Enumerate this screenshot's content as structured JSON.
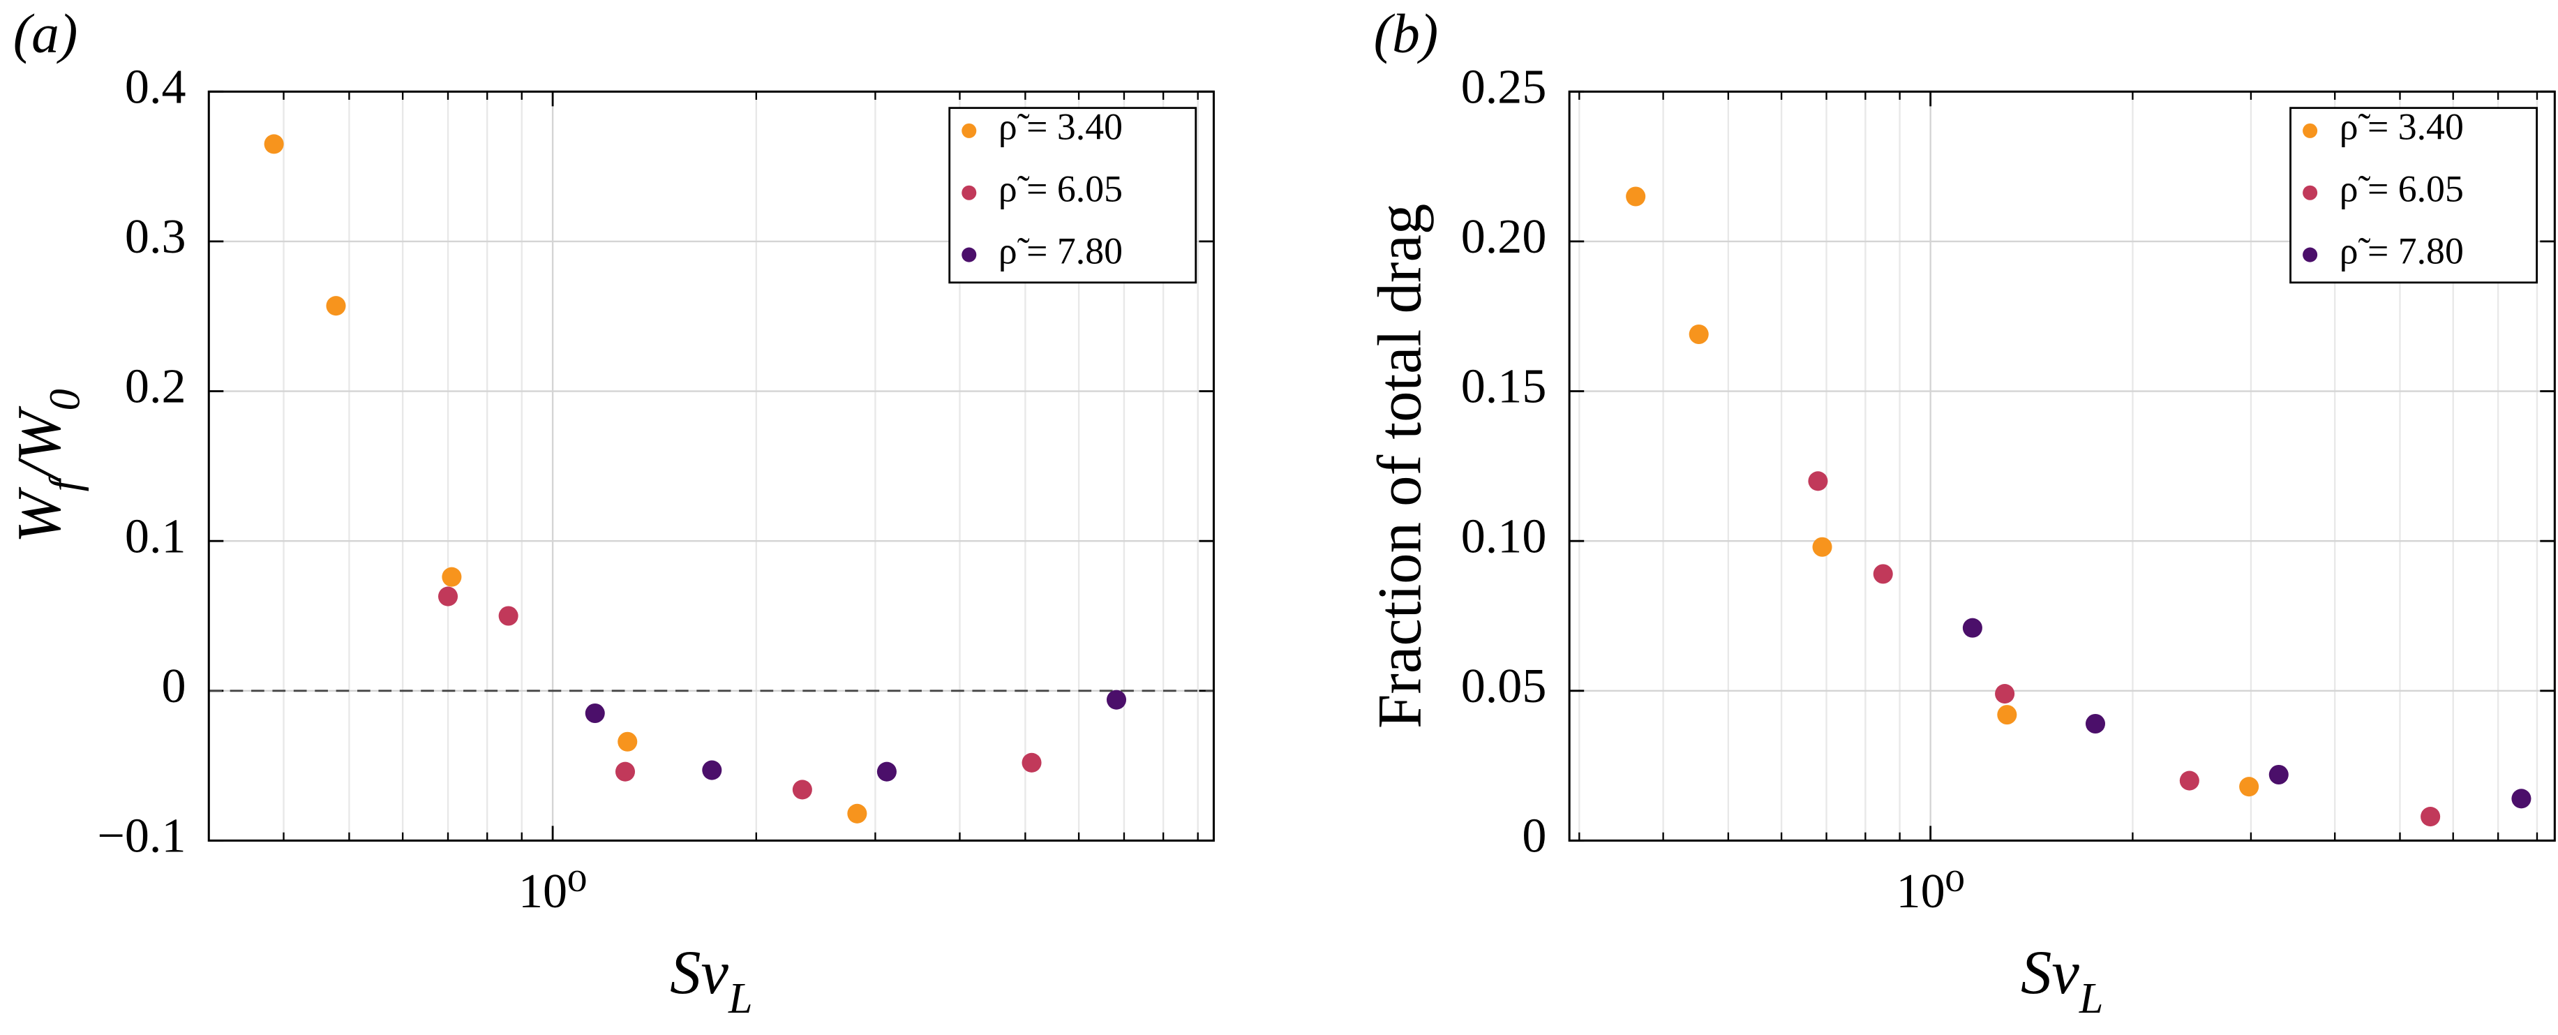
{
  "chart_data": [
    {
      "type": "scatter",
      "panel_label": "(a)",
      "xlabel": [
        {
          "text": "Sv"
        },
        {
          "text": "L",
          "sub": true
        }
      ],
      "ylabel": [
        {
          "text": "W"
        },
        {
          "text": "f",
          "sub": true
        },
        {
          "text": "/W"
        },
        {
          "text": "0",
          "sub": true
        }
      ],
      "xscale": "log",
      "xlim": [
        0.31,
        9.5
      ],
      "ylim": [
        -0.1,
        0.4
      ],
      "xticks": [
        {
          "value": 1,
          "label": "10⁰"
        }
      ],
      "xminor_ticks": [
        0.4,
        0.5,
        0.6,
        0.7,
        0.8,
        0.9,
        2,
        3,
        4,
        5,
        6,
        7,
        8,
        9
      ],
      "yticks": [
        {
          "value": -0.1,
          "label": "−0.1"
        },
        0,
        0.1,
        0.2,
        0.3,
        0.4
      ],
      "hline": 0,
      "grid": true,
      "legend": "upper right",
      "series": [
        {
          "name": "ρ̃ = 3.40",
          "color": "#f7941d",
          "x": [
            0.387,
            0.478,
            0.709,
            1.29,
            2.82
          ],
          "values": [
            0.365,
            0.257,
            0.076,
            -0.034,
            -0.082
          ]
        },
        {
          "name": "ρ̃ = 6.05",
          "color": "#c1395a",
          "x": [
            0.7,
            0.86,
            1.28,
            2.34,
            5.11
          ],
          "values": [
            0.063,
            0.05,
            -0.054,
            -0.066,
            -0.048
          ]
        },
        {
          "name": "ρ̃ = 7.80",
          "color": "#4b0f6a",
          "x": [
            1.155,
            1.72,
            3.12,
            6.82
          ],
          "values": [
            -0.015,
            -0.053,
            -0.054,
            -0.006
          ]
        }
      ]
    },
    {
      "type": "scatter",
      "panel_label": "(b)",
      "xlabel": [
        {
          "text": "Sv"
        },
        {
          "text": "L",
          "sub": true
        }
      ],
      "ylabel": [
        {
          "text": "Fraction of total drag"
        }
      ],
      "xscale": "log",
      "xlim": [
        0.29,
        8.5
      ],
      "ylim": [
        0,
        0.25
      ],
      "xticks": [
        {
          "value": 1,
          "label": "10⁰"
        }
      ],
      "xminor_ticks": [
        0.3,
        0.4,
        0.5,
        0.6,
        0.7,
        0.8,
        0.9,
        2,
        3,
        4,
        5,
        6,
        7,
        8
      ],
      "yticks": [
        0,
        0.05,
        {
          "value": 0.1,
          "label": "0.10"
        },
        0.15,
        {
          "value": 0.2,
          "label": "0.20"
        },
        0.25
      ],
      "grid": true,
      "legend": "upper right",
      "series": [
        {
          "name": "ρ̃ = 3.40",
          "color": "#f7941d",
          "x": [
            0.364,
            0.452,
            0.69,
            1.3,
            2.98
          ],
          "values": [
            0.215,
            0.169,
            0.098,
            0.042,
            0.018
          ]
        },
        {
          "name": "ρ̃ = 6.05",
          "color": "#c1395a",
          "x": [
            0.68,
            0.85,
            1.29,
            2.43,
            5.55
          ],
          "values": [
            0.12,
            0.089,
            0.049,
            0.02,
            0.008
          ]
        },
        {
          "name": "ρ̃ = 7.80",
          "color": "#4b0f6a",
          "x": [
            1.155,
            1.76,
            3.3,
            7.58
          ],
          "values": [
            0.071,
            0.039,
            0.022,
            0.014
          ]
        }
      ]
    }
  ]
}
